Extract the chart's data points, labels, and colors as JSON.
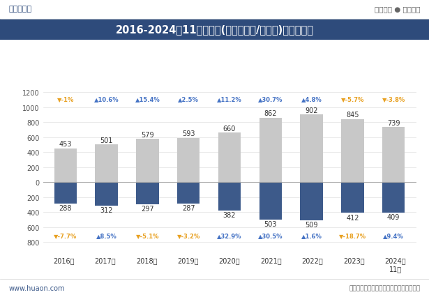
{
  "title": "2016-2024年11月河南省(境内目的地/货源地)进、出口额",
  "years": [
    "2016年",
    "2017年",
    "2018年",
    "2019年",
    "2020年",
    "2021年",
    "2022年",
    "2023年",
    "2024年\n11月"
  ],
  "export_values": [
    453,
    501,
    579,
    593,
    660,
    862,
    902,
    845,
    739
  ],
  "import_values": [
    288,
    312,
    297,
    287,
    382,
    503,
    509,
    412,
    409
  ],
  "export_growth": [
    "-1%",
    "10.6%",
    "15.4%",
    "2.5%",
    "11.2%",
    "30.7%",
    "4.8%",
    "-5.7%",
    "-3.8%"
  ],
  "export_growth_up": [
    false,
    true,
    true,
    true,
    true,
    true,
    true,
    false,
    false
  ],
  "import_growth": [
    "-7.7%",
    "8.5%",
    "-5.1%",
    "-3.2%",
    "32.9%",
    "30.5%",
    "1.6%",
    "-18.7%",
    "9.4%"
  ],
  "import_growth_up": [
    false,
    true,
    false,
    false,
    true,
    true,
    true,
    false,
    true
  ],
  "export_color": "#c8c8c8",
  "import_color": "#3d5a8a",
  "up_color": "#4472c4",
  "down_color": "#e8a020",
  "bg_color": "#ffffff",
  "title_bg_color": "#2e4b7b",
  "title_text_color": "#ffffff",
  "source_text": "数据来源：中国海关、华经产业研究院整理",
  "watermark_text": "www.huaon.com",
  "header_left": "华经情报网",
  "header_right": "专业严谨 ● 客观科学"
}
